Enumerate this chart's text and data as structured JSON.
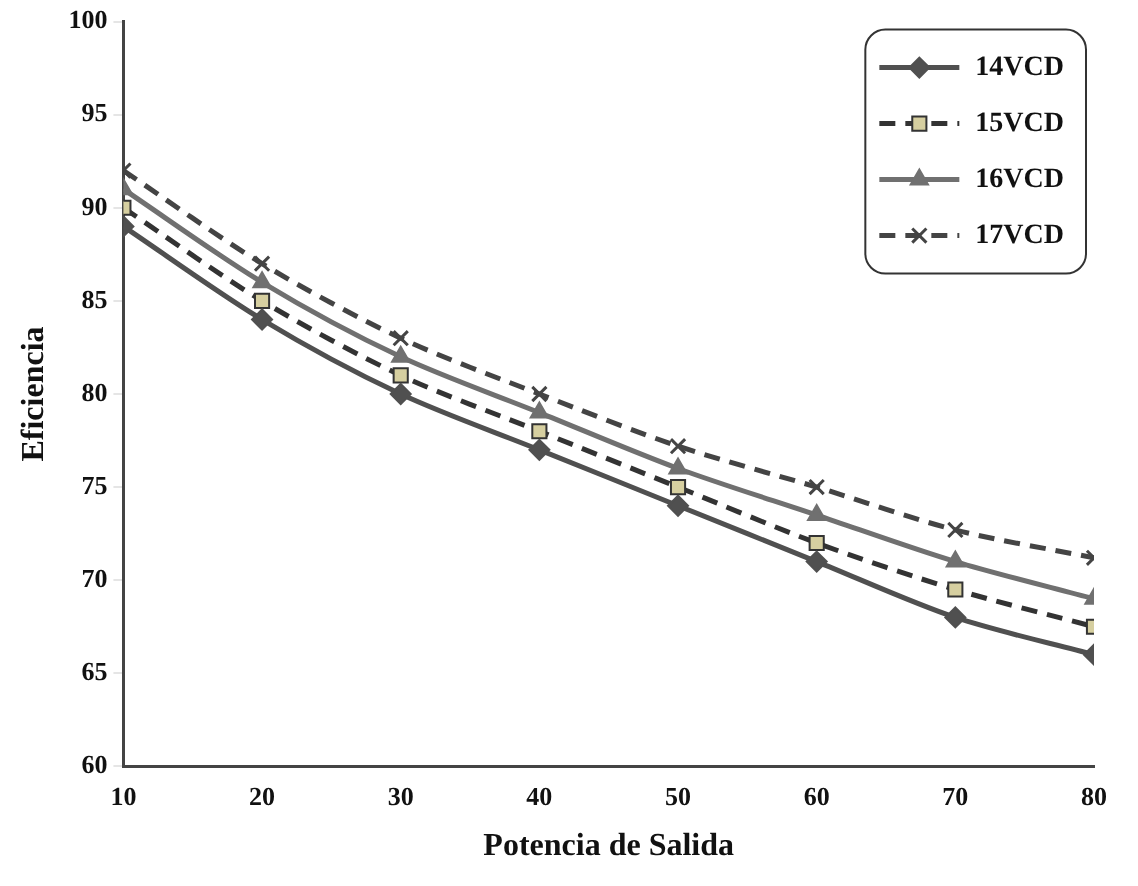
{
  "chart_data": {
    "type": "line",
    "xlabel": "Potencia de Salida",
    "ylabel": "Eficiencia",
    "x": [
      10,
      20,
      30,
      40,
      50,
      60,
      70,
      80
    ],
    "xlim": [
      10,
      80
    ],
    "xticks": [
      10,
      20,
      30,
      40,
      50,
      60,
      70,
      80
    ],
    "ylim": [
      60,
      100
    ],
    "yticks": [
      60,
      65,
      70,
      75,
      80,
      85,
      90,
      95,
      100
    ],
    "grid": false,
    "legend": "top right",
    "series": [
      {
        "name": "14VCD",
        "color": "#505050",
        "marker": "diamond",
        "line_style": "solid",
        "values": [
          89,
          84,
          80,
          77,
          74,
          71,
          68,
          66
        ]
      },
      {
        "name": "15VCD",
        "color": "#333333",
        "marker": "square",
        "line_style": "dashed",
        "values": [
          90,
          85,
          81,
          78,
          75,
          72,
          69.5,
          67.5
        ]
      },
      {
        "name": "16VCD",
        "color": "#707070",
        "marker": "triangle",
        "line_style": "solid",
        "values": [
          91,
          86,
          82,
          79,
          76,
          73.5,
          71,
          69
        ]
      },
      {
        "name": "17VCD",
        "color": "#444444",
        "marker": "cross",
        "line_style": "dashed",
        "values": [
          92,
          87,
          83,
          80,
          77.2,
          75,
          72.7,
          71.2
        ]
      }
    ]
  }
}
